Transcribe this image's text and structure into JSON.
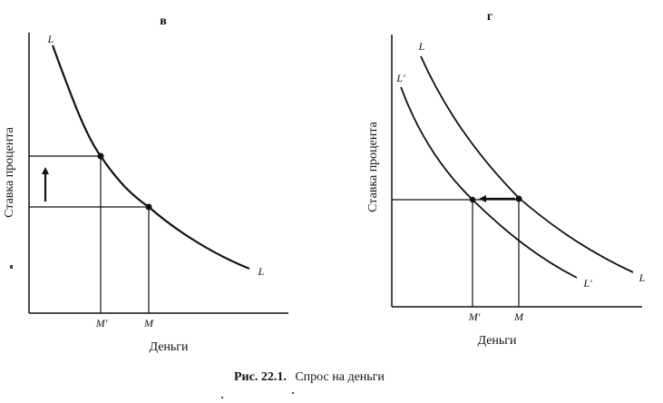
{
  "caption": {
    "prefix": "Рис. 22.1.",
    "text": "Спрос на деньги"
  },
  "panel_v": {
    "title": "в",
    "ylabel": "Ставка процента",
    "xlabel": "Деньги",
    "curve_label_top": "L",
    "curve_label_bottom": "L",
    "tick_left": "M'",
    "tick_right": "M"
  },
  "panel_g": {
    "title": "г",
    "ylabel": "Ставка процента",
    "xlabel": "Деньги",
    "curve_L_label_top": "L",
    "curve_L_label_bottom": "L",
    "curve_Lp_label_top": "L'",
    "curve_Lp_label_bottom": "L'",
    "tick_left": "M'",
    "tick_right": "M"
  },
  "colors": {
    "ink": "#111111",
    "background": "#ffffff"
  }
}
